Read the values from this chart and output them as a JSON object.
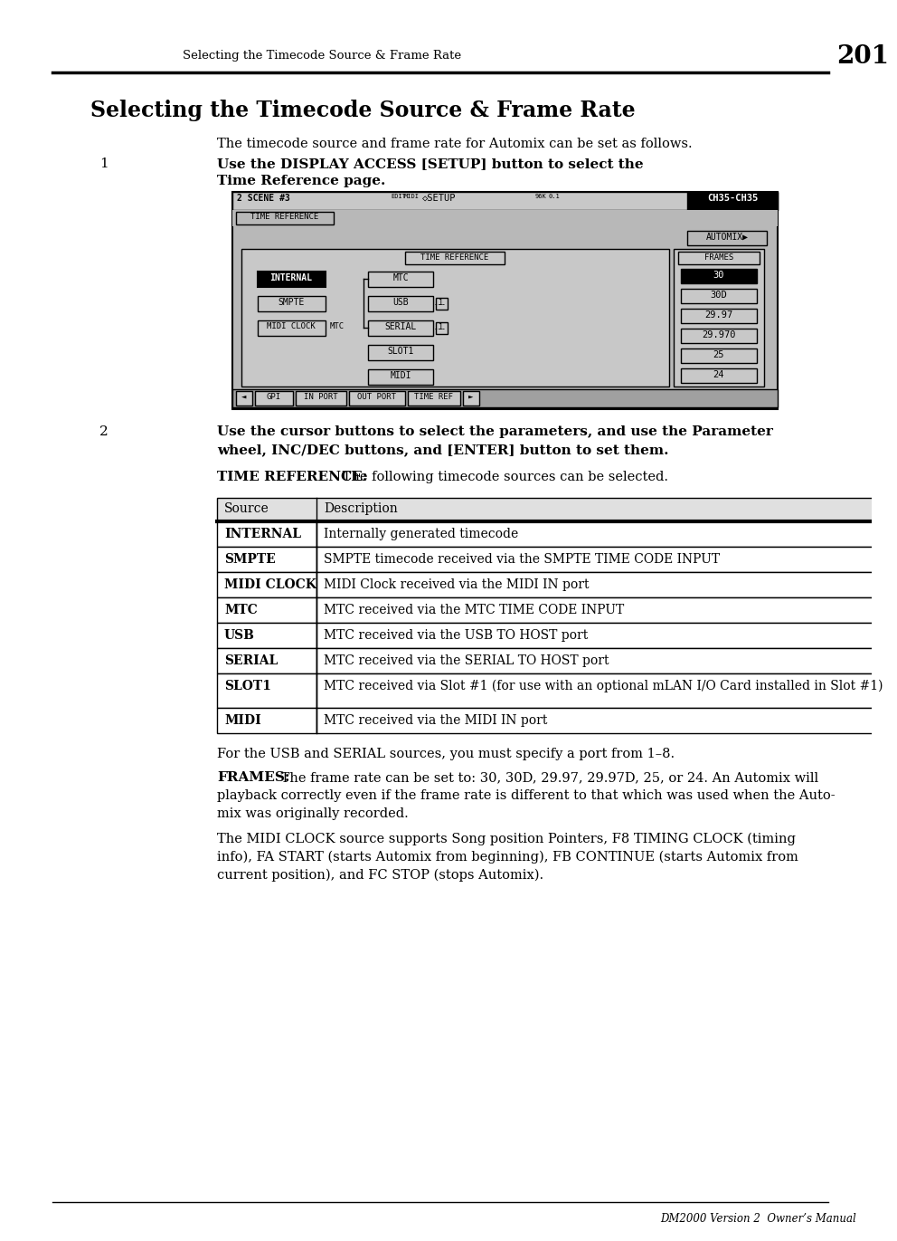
{
  "page_header_text": "Selecting the Timecode Source & Frame Rate",
  "page_number": "201",
  "title": "Selecting the Timecode Source & Frame Rate",
  "subtitle": "The timecode source and frame rate for Automix can be set as follows.",
  "step1_text": "Use the DISPLAY ACCESS [SETUP] button to select the Time Reference page.",
  "step2_text": "Use the cursor buttons to select the parameters, and use the Parameter\nwheel, INC/DEC buttons, and [ENTER] button to set them.",
  "time_ref_label": "TIME REFERENCE:",
  "time_ref_text": " The following timecode sources can be selected.",
  "table_headers": [
    "Source",
    "Description"
  ],
  "table_rows": [
    [
      "INTERNAL",
      "Internally generated timecode"
    ],
    [
      "SMPTE",
      "SMPTE timecode received via the SMPTE TIME CODE INPUT"
    ],
    [
      "MIDI CLOCK",
      "MIDI Clock received via the MIDI IN port"
    ],
    [
      "MTC",
      "MTC received via the MTC TIME CODE INPUT"
    ],
    [
      "USB",
      "MTC received via the USB TO HOST port"
    ],
    [
      "SERIAL",
      "MTC received via the SERIAL TO HOST port"
    ],
    [
      "SLOT1",
      "MTC received via Slot #1 (for use with an optional mLAN I/O Card installed in Slot #1)"
    ],
    [
      "MIDI",
      "MTC received via the MIDI IN port"
    ]
  ],
  "para1": "For the USB and SERIAL sources, you must specify a port from 1–8.",
  "frames_label": "FRAMES:",
  "frames_text": " The frame rate can be set to: 30, 30D, 29.97, 29.97D, 25, or 24. An Automix will\nplayback correctly even if the frame rate is different to that which was used when the Auto-\nmix was originally recorded.",
  "midi_clock_text": "The MIDI CLOCK source supports Song position Pointers, F8 TIMING CLOCK (timing\ninfo), FA START (starts Automix from beginning), FB CONTINUE (starts Automix from\ncurrent position), and FC STOP (stops Automix).",
  "footer_text": "DM2000 Version 2  Owner’s Manual",
  "bg_color": "#ffffff"
}
